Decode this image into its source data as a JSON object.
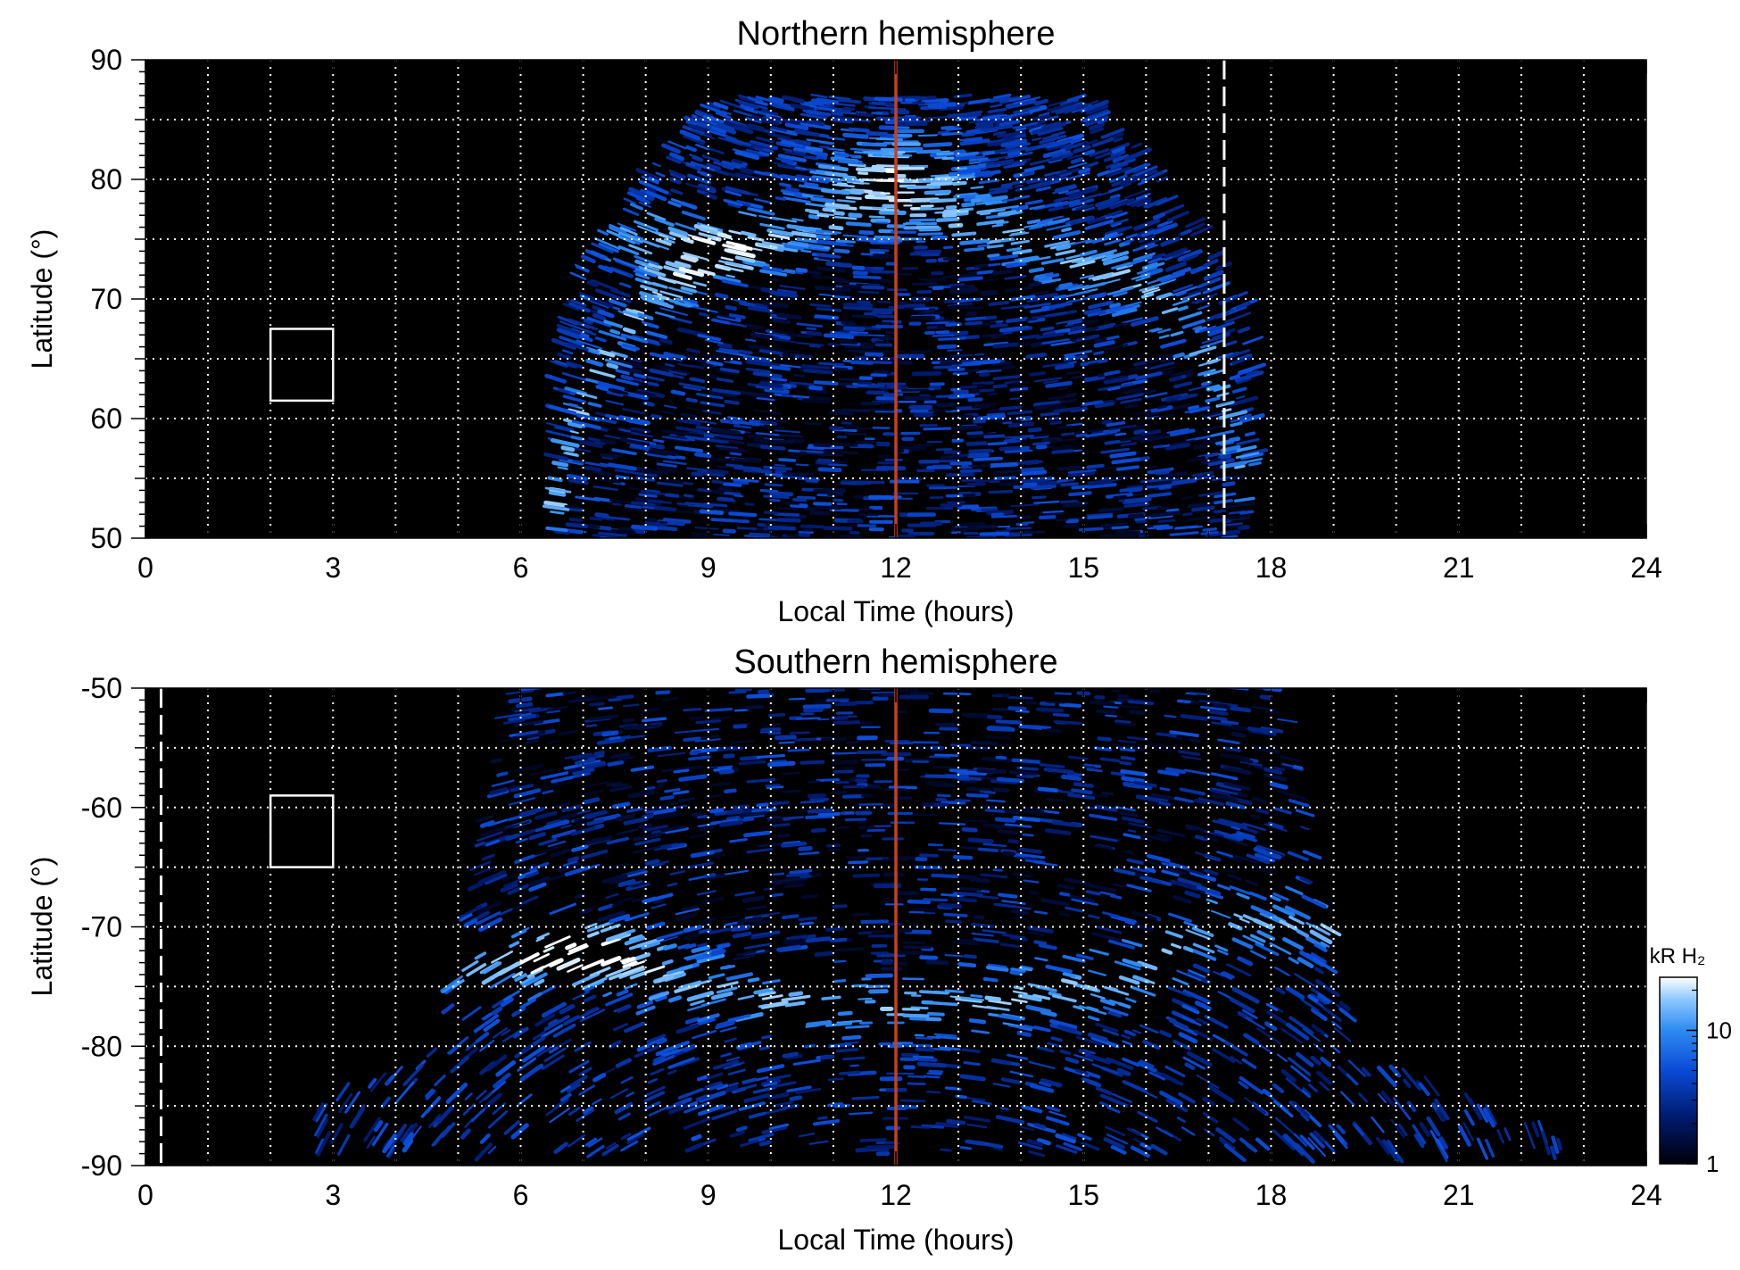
{
  "colorbar": {
    "label": "kR H₂",
    "ticks": [
      {
        "value": 1,
        "label": "1"
      },
      {
        "value": 10,
        "label": "10"
      }
    ],
    "range": [
      1,
      25
    ],
    "scale": "log",
    "colors": [
      "#000008",
      "#001a6e",
      "#0a4ad6",
      "#2f8cf2",
      "#8cc7ff",
      "#ffffff"
    ]
  },
  "chart_data": [
    {
      "type": "heatmap",
      "title": "Northern hemisphere",
      "xlabel": "Local Time (hours)",
      "ylabel": "Latitude (°)",
      "xlim": [
        0,
        24
      ],
      "ylim": [
        50,
        90
      ],
      "x_ticks": [
        "0",
        "3",
        "6",
        "9",
        "12",
        "15",
        "18",
        "21",
        "24"
      ],
      "y_ticks": [
        "50",
        "60",
        "70",
        "80",
        "90"
      ],
      "grid": true,
      "reference_lines": [
        {
          "x": 12,
          "style": "solid",
          "color": "#c8401e"
        },
        {
          "x": 17.25,
          "style": "dashed",
          "color": "#ffffff"
        }
      ],
      "highlight_box": {
        "x": [
          2,
          3
        ],
        "y": [
          61.5,
          67.5
        ]
      },
      "coverage": {
        "lt_extent": [
          6.5,
          17.8
        ],
        "lat_extent": [
          50,
          87
        ]
      },
      "auroral_oval": {
        "latitude_profile": [
          {
            "lt": 6.5,
            "lat": 52
          },
          {
            "lt": 7,
            "lat": 62
          },
          {
            "lt": 8,
            "lat": 70
          },
          {
            "lt": 9,
            "lat": 73
          },
          {
            "lt": 10,
            "lat": 75
          },
          {
            "lt": 11,
            "lat": 77
          },
          {
            "lt": 12,
            "lat": 78
          },
          {
            "lt": 13,
            "lat": 77
          },
          {
            "lt": 14,
            "lat": 75
          },
          {
            "lt": 15,
            "lat": 73
          },
          {
            "lt": 16,
            "lat": 71
          },
          {
            "lt": 17,
            "lat": 65
          },
          {
            "lt": 17.7,
            "lat": 54
          }
        ],
        "peak_brightness": [
          {
            "lt": 8.5,
            "lat": 75,
            "kR": 25
          },
          {
            "lt": 12,
            "lat": 81,
            "kR": 22
          }
        ]
      }
    },
    {
      "type": "heatmap",
      "title": "Southern hemisphere",
      "xlabel": "Local Time (hours)",
      "ylabel": "Latitude (°)",
      "xlim": [
        0,
        24
      ],
      "ylim": [
        -90,
        -50
      ],
      "x_ticks": [
        "0",
        "3",
        "6",
        "9",
        "12",
        "15",
        "18",
        "21",
        "24"
      ],
      "y_ticks": [
        "-50",
        "-60",
        "-70",
        "-80",
        "-90"
      ],
      "grid": true,
      "reference_lines": [
        {
          "x": 12,
          "style": "solid",
          "color": "#c8401e"
        },
        {
          "x": 0.25,
          "style": "dashed",
          "color": "#ffffff"
        }
      ],
      "highlight_box": {
        "x": [
          2,
          3
        ],
        "y": [
          -65,
          -59
        ]
      },
      "coverage": {
        "lt_extent": [
          2.5,
          23.7
        ],
        "lat_extent": [
          -89,
          -50
        ]
      },
      "auroral_oval": {
        "latitude_profile": [
          {
            "lt": 6,
            "lat": -73
          },
          {
            "lt": 7,
            "lat": -72
          },
          {
            "lt": 8,
            "lat": -74
          },
          {
            "lt": 10,
            "lat": -76
          },
          {
            "lt": 12,
            "lat": -77
          },
          {
            "lt": 14,
            "lat": -76
          },
          {
            "lt": 16,
            "lat": -74
          },
          {
            "lt": 17,
            "lat": -70
          }
        ],
        "peak_brightness": [
          {
            "lt": 7,
            "lat": -72,
            "kR": 22
          }
        ]
      }
    }
  ]
}
